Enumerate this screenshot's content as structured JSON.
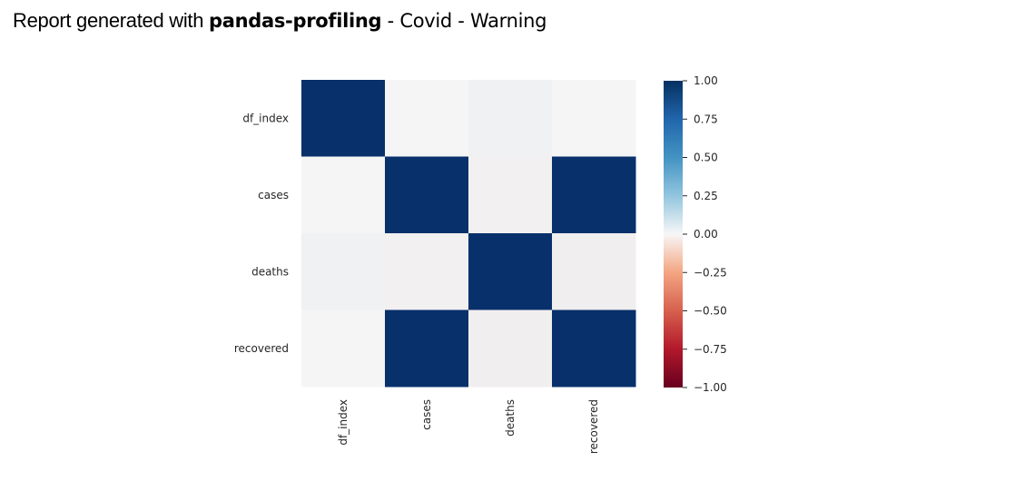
{
  "header": {
    "prefix": "Report generated with ",
    "tool": "pandas-profiling",
    "suffix": " - Covid - Warning"
  },
  "chart_data": {
    "type": "heatmap",
    "rows": [
      "df_index",
      "cases",
      "deaths",
      "recovered"
    ],
    "cols": [
      "df_index",
      "cases",
      "deaths",
      "recovered"
    ],
    "values": [
      [
        1.0,
        0.0,
        0.02,
        0.0
      ],
      [
        0.0,
        1.0,
        -0.02,
        1.0
      ],
      [
        0.02,
        -0.02,
        1.0,
        -0.03
      ],
      [
        0.0,
        1.0,
        -0.03,
        1.0
      ]
    ],
    "vmin": -1.0,
    "vmax": 1.0,
    "colormap": "RdBu",
    "colorbar_ticks": [
      "1.00",
      "0.75",
      "0.50",
      "0.25",
      "0.00",
      "−0.25",
      "−0.50",
      "−0.75",
      "−1.00"
    ],
    "colors": {
      "max": "#08306b",
      "mid": "#f5f5f5",
      "min": "#67001f"
    }
  }
}
